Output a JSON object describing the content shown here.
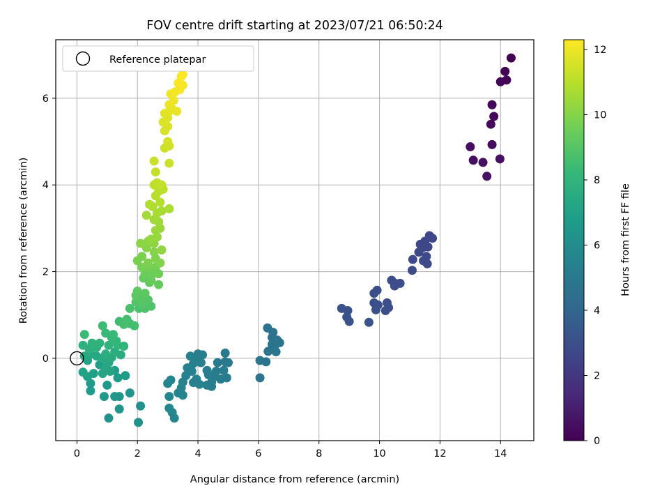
{
  "chart_data": {
    "type": "scatter",
    "title": "FOV centre drift starting at 2023/07/21 06:50:24",
    "xlabel": "Angular distance from reference (arcmin)",
    "ylabel": "Rotation from reference (arcmin)",
    "xlim": [
      -0.7,
      15.1
    ],
    "ylim": [
      -1.9,
      7.35
    ],
    "xticks": [
      0,
      2,
      4,
      6,
      8,
      10,
      12,
      14
    ],
    "yticks": [
      0,
      2,
      4,
      6
    ],
    "grid": true,
    "legend": {
      "placement": "top-left",
      "entries": [
        "Reference platepar"
      ]
    },
    "reference_point": {
      "x": 0,
      "y": 0
    },
    "colorbar": {
      "label": "Hours from first FF file",
      "min": 0,
      "max": 12.3,
      "ticks": [
        0,
        2,
        4,
        6,
        8,
        10,
        12
      ],
      "colormap": "viridis"
    },
    "colormap_stops": [
      "#440154",
      "#482878",
      "#3e4989",
      "#31688e",
      "#26828e",
      "#1f9e89",
      "#35b779",
      "#6ece58",
      "#b5de2b",
      "#fde725"
    ],
    "points": [
      {
        "x": 14.35,
        "y": 6.93,
        "t": 0.0
      },
      {
        "x": 14.15,
        "y": 6.62,
        "t": 0.05
      },
      {
        "x": 14.2,
        "y": 6.42,
        "t": 0.1
      },
      {
        "x": 14.0,
        "y": 6.38,
        "t": 0.15
      },
      {
        "x": 13.72,
        "y": 5.85,
        "t": 0.2
      },
      {
        "x": 13.78,
        "y": 5.58,
        "t": 0.25
      },
      {
        "x": 13.68,
        "y": 5.4,
        "t": 0.3
      },
      {
        "x": 13.72,
        "y": 4.93,
        "t": 0.35
      },
      {
        "x": 13.0,
        "y": 4.88,
        "t": 0.4
      },
      {
        "x": 13.1,
        "y": 4.57,
        "t": 0.45
      },
      {
        "x": 13.42,
        "y": 4.52,
        "t": 0.5
      },
      {
        "x": 13.98,
        "y": 4.6,
        "t": 0.55
      },
      {
        "x": 13.55,
        "y": 4.2,
        "t": 0.6
      },
      {
        "x": 11.65,
        "y": 2.83,
        "t": 2.6
      },
      {
        "x": 11.75,
        "y": 2.77,
        "t": 2.62
      },
      {
        "x": 11.5,
        "y": 2.7,
        "t": 2.64
      },
      {
        "x": 11.35,
        "y": 2.63,
        "t": 2.66
      },
      {
        "x": 11.6,
        "y": 2.57,
        "t": 2.68
      },
      {
        "x": 11.42,
        "y": 2.55,
        "t": 2.7
      },
      {
        "x": 11.3,
        "y": 2.45,
        "t": 2.72
      },
      {
        "x": 11.55,
        "y": 2.35,
        "t": 2.74
      },
      {
        "x": 11.1,
        "y": 2.28,
        "t": 2.76
      },
      {
        "x": 11.45,
        "y": 2.25,
        "t": 2.78
      },
      {
        "x": 11.58,
        "y": 2.18,
        "t": 2.8
      },
      {
        "x": 11.08,
        "y": 2.03,
        "t": 2.82
      },
      {
        "x": 10.4,
        "y": 1.8,
        "t": 2.84
      },
      {
        "x": 10.52,
        "y": 1.73,
        "t": 2.86
      },
      {
        "x": 10.68,
        "y": 1.73,
        "t": 2.88
      },
      {
        "x": 10.5,
        "y": 1.67,
        "t": 2.9
      },
      {
        "x": 9.92,
        "y": 1.57,
        "t": 2.92
      },
      {
        "x": 9.82,
        "y": 1.5,
        "t": 2.94
      },
      {
        "x": 9.82,
        "y": 1.28,
        "t": 2.96
      },
      {
        "x": 10.25,
        "y": 1.28,
        "t": 2.98
      },
      {
        "x": 9.95,
        "y": 1.23,
        "t": 3.0
      },
      {
        "x": 10.3,
        "y": 1.17,
        "t": 3.02
      },
      {
        "x": 9.88,
        "y": 1.12,
        "t": 3.04
      },
      {
        "x": 10.2,
        "y": 1.1,
        "t": 3.06
      },
      {
        "x": 8.75,
        "y": 1.15,
        "t": 3.08
      },
      {
        "x": 8.95,
        "y": 1.1,
        "t": 3.1
      },
      {
        "x": 8.92,
        "y": 0.95,
        "t": 3.12
      },
      {
        "x": 9.0,
        "y": 0.85,
        "t": 3.14
      },
      {
        "x": 9.65,
        "y": 0.83,
        "t": 3.16
      },
      {
        "x": 6.3,
        "y": 0.7,
        "t": 4.6
      },
      {
        "x": 6.48,
        "y": 0.6,
        "t": 4.62
      },
      {
        "x": 6.45,
        "y": 0.48,
        "t": 4.64
      },
      {
        "x": 6.62,
        "y": 0.42,
        "t": 4.66
      },
      {
        "x": 6.7,
        "y": 0.36,
        "t": 4.68
      },
      {
        "x": 6.45,
        "y": 0.32,
        "t": 4.7
      },
      {
        "x": 6.52,
        "y": 0.25,
        "t": 4.72
      },
      {
        "x": 6.32,
        "y": 0.16,
        "t": 4.74
      },
      {
        "x": 6.58,
        "y": 0.15,
        "t": 4.76
      },
      {
        "x": 6.05,
        "y": -0.05,
        "t": 4.78
      },
      {
        "x": 6.25,
        "y": -0.08,
        "t": 4.8
      },
      {
        "x": 6.05,
        "y": -0.45,
        "t": 4.82
      },
      {
        "x": 4.9,
        "y": 0.12,
        "t": 5.0
      },
      {
        "x": 4.9,
        "y": -0.08,
        "t": 5.02
      },
      {
        "x": 5.0,
        "y": -0.1,
        "t": 5.04
      },
      {
        "x": 4.65,
        "y": -0.1,
        "t": 5.06
      },
      {
        "x": 4.6,
        "y": -0.3,
        "t": 5.08
      },
      {
        "x": 4.85,
        "y": -0.28,
        "t": 5.1
      },
      {
        "x": 4.95,
        "y": -0.45,
        "t": 5.12
      },
      {
        "x": 4.75,
        "y": -0.48,
        "t": 5.14
      },
      {
        "x": 4.55,
        "y": -0.42,
        "t": 5.16
      },
      {
        "x": 4.35,
        "y": -0.38,
        "t": 5.18
      },
      {
        "x": 4.3,
        "y": -0.28,
        "t": 5.2
      },
      {
        "x": 4.45,
        "y": -0.55,
        "t": 5.22
      },
      {
        "x": 4.3,
        "y": -0.62,
        "t": 5.24
      },
      {
        "x": 4.45,
        "y": -0.65,
        "t": 5.26
      },
      {
        "x": 4.0,
        "y": 0.1,
        "t": 5.28
      },
      {
        "x": 4.15,
        "y": 0.08,
        "t": 5.3
      },
      {
        "x": 3.95,
        "y": -0.05,
        "t": 5.32
      },
      {
        "x": 4.1,
        "y": -0.1,
        "t": 5.34
      },
      {
        "x": 3.85,
        "y": -0.12,
        "t": 5.36
      },
      {
        "x": 3.75,
        "y": 0.05,
        "t": 5.38
      },
      {
        "x": 3.65,
        "y": -0.22,
        "t": 5.4
      },
      {
        "x": 3.8,
        "y": -0.3,
        "t": 5.42
      },
      {
        "x": 3.6,
        "y": -0.4,
        "t": 5.44
      },
      {
        "x": 3.95,
        "y": -0.48,
        "t": 5.46
      },
      {
        "x": 3.85,
        "y": -0.56,
        "t": 5.48
      },
      {
        "x": 4.05,
        "y": -0.6,
        "t": 5.5
      },
      {
        "x": 3.5,
        "y": -0.55,
        "t": 5.52
      },
      {
        "x": 3.45,
        "y": -0.68,
        "t": 5.54
      },
      {
        "x": 3.35,
        "y": -0.8,
        "t": 5.56
      },
      {
        "x": 3.5,
        "y": -0.85,
        "t": 5.58
      },
      {
        "x": 3.1,
        "y": -0.5,
        "t": 5.6
      },
      {
        "x": 3.0,
        "y": -0.58,
        "t": 5.62
      },
      {
        "x": 3.05,
        "y": -0.88,
        "t": 5.64
      },
      {
        "x": 3.05,
        "y": -1.15,
        "t": 5.66
      },
      {
        "x": 3.15,
        "y": -1.25,
        "t": 5.68
      },
      {
        "x": 3.22,
        "y": -1.38,
        "t": 5.7
      },
      {
        "x": 2.1,
        "y": -1.1,
        "t": 6.2
      },
      {
        "x": 2.03,
        "y": -1.48,
        "t": 6.25
      },
      {
        "x": 1.05,
        "y": -1.38,
        "t": 6.3
      },
      {
        "x": 1.4,
        "y": -1.17,
        "t": 6.35
      },
      {
        "x": 1.75,
        "y": -0.8,
        "t": 6.4
      },
      {
        "x": 1.4,
        "y": -0.88,
        "t": 6.45
      },
      {
        "x": 1.25,
        "y": -0.88,
        "t": 6.5
      },
      {
        "x": 0.9,
        "y": -0.88,
        "t": 6.55
      },
      {
        "x": 1.0,
        "y": -0.62,
        "t": 6.6
      },
      {
        "x": 0.45,
        "y": -0.75,
        "t": 6.65
      },
      {
        "x": 0.45,
        "y": -0.58,
        "t": 6.7
      },
      {
        "x": 1.35,
        "y": -0.45,
        "t": 6.75
      },
      {
        "x": 1.6,
        "y": -0.4,
        "t": 6.8
      },
      {
        "x": 1.25,
        "y": -0.28,
        "t": 6.85
      },
      {
        "x": 0.75,
        "y": -0.15,
        "t": 6.9
      },
      {
        "x": 0.55,
        "y": -0.35,
        "t": 6.95
      },
      {
        "x": 0.35,
        "y": -0.42,
        "t": 7.0
      },
      {
        "x": 0.2,
        "y": -0.32,
        "t": 7.05
      },
      {
        "x": 0.35,
        "y": -0.05,
        "t": 7.1
      },
      {
        "x": 1.1,
        "y": -0.3,
        "t": 7.15
      },
      {
        "x": 0.85,
        "y": -0.35,
        "t": 7.2
      },
      {
        "x": 0.95,
        "y": -0.2,
        "t": 7.25
      },
      {
        "x": 1.05,
        "y": -0.1,
        "t": 7.3
      },
      {
        "x": 0.65,
        "y": 0.05,
        "t": 7.35
      },
      {
        "x": 0.45,
        "y": 0.1,
        "t": 7.4
      },
      {
        "x": 0.25,
        "y": 0.05,
        "t": 7.45
      },
      {
        "x": 0.85,
        "y": 0.0,
        "t": 7.5
      },
      {
        "x": 1.15,
        "y": 0.02,
        "t": 7.55
      },
      {
        "x": 1.45,
        "y": 0.08,
        "t": 7.6
      },
      {
        "x": 1.25,
        "y": 0.15,
        "t": 7.65
      },
      {
        "x": 0.95,
        "y": 0.1,
        "t": 7.7
      },
      {
        "x": 0.65,
        "y": 0.25,
        "t": 7.75
      },
      {
        "x": 0.4,
        "y": 0.22,
        "t": 7.8
      },
      {
        "x": 0.2,
        "y": 0.3,
        "t": 7.85
      },
      {
        "x": 0.5,
        "y": 0.35,
        "t": 7.9
      },
      {
        "x": 0.75,
        "y": 0.35,
        "t": 7.95
      },
      {
        "x": 1.05,
        "y": 0.3,
        "t": 8.0
      },
      {
        "x": 1.35,
        "y": 0.3,
        "t": 8.05
      },
      {
        "x": 1.55,
        "y": 0.28,
        "t": 8.1
      },
      {
        "x": 1.3,
        "y": 0.4,
        "t": 8.15
      },
      {
        "x": 1.15,
        "y": 0.48,
        "t": 8.2
      },
      {
        "x": 0.95,
        "y": 0.58,
        "t": 8.25
      },
      {
        "x": 1.2,
        "y": 0.55,
        "t": 8.3
      },
      {
        "x": 0.25,
        "y": 0.55,
        "t": 8.35
      },
      {
        "x": 0.85,
        "y": 0.75,
        "t": 8.4
      },
      {
        "x": 1.4,
        "y": 0.85,
        "t": 8.45
      },
      {
        "x": 1.75,
        "y": 0.8,
        "t": 8.5
      },
      {
        "x": 1.9,
        "y": 0.75,
        "t": 8.55
      },
      {
        "x": 1.65,
        "y": 0.9,
        "t": 8.6
      },
      {
        "x": 1.55,
        "y": 0.78,
        "t": 8.65
      },
      {
        "x": 1.75,
        "y": 1.15,
        "t": 8.7
      },
      {
        "x": 2.05,
        "y": 1.15,
        "t": 8.75
      },
      {
        "x": 2.25,
        "y": 1.15,
        "t": 8.8
      },
      {
        "x": 2.45,
        "y": 1.2,
        "t": 8.85
      },
      {
        "x": 1.95,
        "y": 1.3,
        "t": 8.9
      },
      {
        "x": 2.15,
        "y": 1.25,
        "t": 8.95
      },
      {
        "x": 2.35,
        "y": 1.35,
        "t": 9.0
      },
      {
        "x": 2.1,
        "y": 1.4,
        "t": 9.05
      },
      {
        "x": 1.95,
        "y": 1.45,
        "t": 9.1
      },
      {
        "x": 2.25,
        "y": 1.5,
        "t": 9.15
      },
      {
        "x": 2.0,
        "y": 1.55,
        "t": 9.2
      },
      {
        "x": 2.4,
        "y": 1.75,
        "t": 9.25
      },
      {
        "x": 2.2,
        "y": 1.85,
        "t": 9.3
      },
      {
        "x": 2.7,
        "y": 1.7,
        "t": 9.35
      },
      {
        "x": 2.45,
        "y": 1.8,
        "t": 9.4
      },
      {
        "x": 2.25,
        "y": 1.95,
        "t": 9.45
      },
      {
        "x": 2.5,
        "y": 1.95,
        "t": 9.5
      },
      {
        "x": 2.7,
        "y": 1.95,
        "t": 9.55
      },
      {
        "x": 2.6,
        "y": 2.1,
        "t": 9.6
      },
      {
        "x": 2.4,
        "y": 2.1,
        "t": 9.65
      },
      {
        "x": 2.15,
        "y": 2.1,
        "t": 9.7
      },
      {
        "x": 2.0,
        "y": 2.25,
        "t": 9.75
      },
      {
        "x": 2.15,
        "y": 2.35,
        "t": 9.8
      },
      {
        "x": 2.35,
        "y": 2.2,
        "t": 9.85
      },
      {
        "x": 2.6,
        "y": 2.3,
        "t": 9.9
      },
      {
        "x": 2.75,
        "y": 2.2,
        "t": 9.95
      },
      {
        "x": 2.55,
        "y": 2.45,
        "t": 10.0
      },
      {
        "x": 2.3,
        "y": 2.55,
        "t": 10.05
      },
      {
        "x": 2.1,
        "y": 2.65,
        "t": 10.1
      },
      {
        "x": 2.35,
        "y": 2.7,
        "t": 10.15
      },
      {
        "x": 2.55,
        "y": 2.65,
        "t": 10.2
      },
      {
        "x": 2.8,
        "y": 2.5,
        "t": 10.25
      },
      {
        "x": 2.45,
        "y": 2.75,
        "t": 10.3
      },
      {
        "x": 2.65,
        "y": 2.8,
        "t": 10.35
      },
      {
        "x": 2.6,
        "y": 2.95,
        "t": 10.4
      },
      {
        "x": 2.75,
        "y": 3.0,
        "t": 10.45
      },
      {
        "x": 2.7,
        "y": 3.15,
        "t": 10.5
      },
      {
        "x": 2.55,
        "y": 3.2,
        "t": 10.55
      },
      {
        "x": 2.3,
        "y": 3.3,
        "t": 10.6
      },
      {
        "x": 2.65,
        "y": 3.35,
        "t": 10.65
      },
      {
        "x": 2.8,
        "y": 3.4,
        "t": 10.7
      },
      {
        "x": 3.05,
        "y": 3.45,
        "t": 10.75
      },
      {
        "x": 2.5,
        "y": 3.5,
        "t": 10.8
      },
      {
        "x": 2.4,
        "y": 3.55,
        "t": 10.85
      },
      {
        "x": 2.75,
        "y": 3.6,
        "t": 10.9
      },
      {
        "x": 2.6,
        "y": 3.75,
        "t": 10.95
      },
      {
        "x": 2.7,
        "y": 3.85,
        "t": 11.0
      },
      {
        "x": 2.85,
        "y": 3.9,
        "t": 11.05
      },
      {
        "x": 2.55,
        "y": 4.0,
        "t": 11.1
      },
      {
        "x": 2.65,
        "y": 4.05,
        "t": 11.15
      },
      {
        "x": 2.8,
        "y": 4.0,
        "t": 11.2
      },
      {
        "x": 2.6,
        "y": 4.3,
        "t": 11.25
      },
      {
        "x": 2.55,
        "y": 4.55,
        "t": 11.3
      },
      {
        "x": 3.05,
        "y": 4.5,
        "t": 11.35
      },
      {
        "x": 2.9,
        "y": 4.85,
        "t": 11.4
      },
      {
        "x": 3.05,
        "y": 4.9,
        "t": 11.45
      },
      {
        "x": 3.0,
        "y": 5.0,
        "t": 11.5
      },
      {
        "x": 2.9,
        "y": 5.25,
        "t": 11.55
      },
      {
        "x": 3.0,
        "y": 5.35,
        "t": 11.6
      },
      {
        "x": 2.85,
        "y": 5.45,
        "t": 11.65
      },
      {
        "x": 3.0,
        "y": 5.55,
        "t": 11.7
      },
      {
        "x": 2.9,
        "y": 5.65,
        "t": 11.75
      },
      {
        "x": 3.05,
        "y": 5.7,
        "t": 11.8
      },
      {
        "x": 3.15,
        "y": 5.75,
        "t": 11.85
      },
      {
        "x": 3.3,
        "y": 5.7,
        "t": 11.9
      },
      {
        "x": 3.05,
        "y": 5.85,
        "t": 11.95
      },
      {
        "x": 3.2,
        "y": 5.95,
        "t": 12.0
      },
      {
        "x": 3.1,
        "y": 6.1,
        "t": 12.05
      },
      {
        "x": 3.25,
        "y": 6.15,
        "t": 12.1
      },
      {
        "x": 3.4,
        "y": 6.2,
        "t": 12.15
      },
      {
        "x": 3.5,
        "y": 6.3,
        "t": 12.2
      },
      {
        "x": 3.35,
        "y": 6.35,
        "t": 12.22
      },
      {
        "x": 3.45,
        "y": 6.5,
        "t": 12.25
      },
      {
        "x": 3.5,
        "y": 6.55,
        "t": 12.28
      }
    ]
  }
}
